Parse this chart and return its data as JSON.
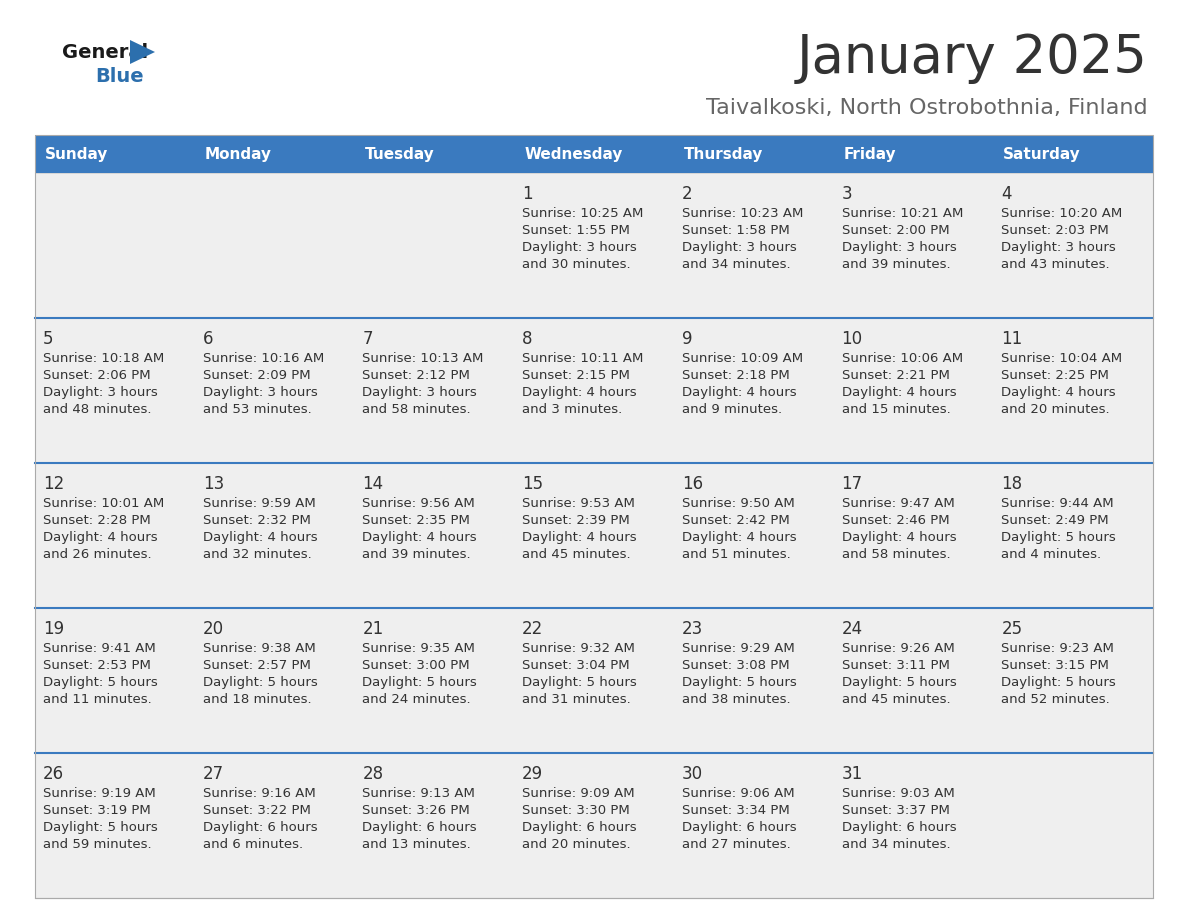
{
  "title": "January 2025",
  "subtitle": "Taivalkoski, North Ostrobothnia, Finland",
  "days_of_week": [
    "Sunday",
    "Monday",
    "Tuesday",
    "Wednesday",
    "Thursday",
    "Friday",
    "Saturday"
  ],
  "header_bg": "#3a7abf",
  "header_text": "#ffffff",
  "cell_bg_light": "#efefef",
  "separator_color": "#3a7abf",
  "text_color": "#333333",
  "title_color": "#333333",
  "subtitle_color": "#666666",
  "calendar_data": [
    [
      null,
      null,
      null,
      {
        "day": 1,
        "sunrise": "10:25 AM",
        "sunset": "1:55 PM",
        "daylight_h": "3 hours",
        "daylight_m": "and 30 minutes."
      },
      {
        "day": 2,
        "sunrise": "10:23 AM",
        "sunset": "1:58 PM",
        "daylight_h": "3 hours",
        "daylight_m": "and 34 minutes."
      },
      {
        "day": 3,
        "sunrise": "10:21 AM",
        "sunset": "2:00 PM",
        "daylight_h": "3 hours",
        "daylight_m": "and 39 minutes."
      },
      {
        "day": 4,
        "sunrise": "10:20 AM",
        "sunset": "2:03 PM",
        "daylight_h": "3 hours",
        "daylight_m": "and 43 minutes."
      }
    ],
    [
      {
        "day": 5,
        "sunrise": "10:18 AM",
        "sunset": "2:06 PM",
        "daylight_h": "3 hours",
        "daylight_m": "and 48 minutes."
      },
      {
        "day": 6,
        "sunrise": "10:16 AM",
        "sunset": "2:09 PM",
        "daylight_h": "3 hours",
        "daylight_m": "and 53 minutes."
      },
      {
        "day": 7,
        "sunrise": "10:13 AM",
        "sunset": "2:12 PM",
        "daylight_h": "3 hours",
        "daylight_m": "and 58 minutes."
      },
      {
        "day": 8,
        "sunrise": "10:11 AM",
        "sunset": "2:15 PM",
        "daylight_h": "4 hours",
        "daylight_m": "and 3 minutes."
      },
      {
        "day": 9,
        "sunrise": "10:09 AM",
        "sunset": "2:18 PM",
        "daylight_h": "4 hours",
        "daylight_m": "and 9 minutes."
      },
      {
        "day": 10,
        "sunrise": "10:06 AM",
        "sunset": "2:21 PM",
        "daylight_h": "4 hours",
        "daylight_m": "and 15 minutes."
      },
      {
        "day": 11,
        "sunrise": "10:04 AM",
        "sunset": "2:25 PM",
        "daylight_h": "4 hours",
        "daylight_m": "and 20 minutes."
      }
    ],
    [
      {
        "day": 12,
        "sunrise": "10:01 AM",
        "sunset": "2:28 PM",
        "daylight_h": "4 hours",
        "daylight_m": "and 26 minutes."
      },
      {
        "day": 13,
        "sunrise": "9:59 AM",
        "sunset": "2:32 PM",
        "daylight_h": "4 hours",
        "daylight_m": "and 32 minutes."
      },
      {
        "day": 14,
        "sunrise": "9:56 AM",
        "sunset": "2:35 PM",
        "daylight_h": "4 hours",
        "daylight_m": "and 39 minutes."
      },
      {
        "day": 15,
        "sunrise": "9:53 AM",
        "sunset": "2:39 PM",
        "daylight_h": "4 hours",
        "daylight_m": "and 45 minutes."
      },
      {
        "day": 16,
        "sunrise": "9:50 AM",
        "sunset": "2:42 PM",
        "daylight_h": "4 hours",
        "daylight_m": "and 51 minutes."
      },
      {
        "day": 17,
        "sunrise": "9:47 AM",
        "sunset": "2:46 PM",
        "daylight_h": "4 hours",
        "daylight_m": "and 58 minutes."
      },
      {
        "day": 18,
        "sunrise": "9:44 AM",
        "sunset": "2:49 PM",
        "daylight_h": "5 hours",
        "daylight_m": "and 4 minutes."
      }
    ],
    [
      {
        "day": 19,
        "sunrise": "9:41 AM",
        "sunset": "2:53 PM",
        "daylight_h": "5 hours",
        "daylight_m": "and 11 minutes."
      },
      {
        "day": 20,
        "sunrise": "9:38 AM",
        "sunset": "2:57 PM",
        "daylight_h": "5 hours",
        "daylight_m": "and 18 minutes."
      },
      {
        "day": 21,
        "sunrise": "9:35 AM",
        "sunset": "3:00 PM",
        "daylight_h": "5 hours",
        "daylight_m": "and 24 minutes."
      },
      {
        "day": 22,
        "sunrise": "9:32 AM",
        "sunset": "3:04 PM",
        "daylight_h": "5 hours",
        "daylight_m": "and 31 minutes."
      },
      {
        "day": 23,
        "sunrise": "9:29 AM",
        "sunset": "3:08 PM",
        "daylight_h": "5 hours",
        "daylight_m": "and 38 minutes."
      },
      {
        "day": 24,
        "sunrise": "9:26 AM",
        "sunset": "3:11 PM",
        "daylight_h": "5 hours",
        "daylight_m": "and 45 minutes."
      },
      {
        "day": 25,
        "sunrise": "9:23 AM",
        "sunset": "3:15 PM",
        "daylight_h": "5 hours",
        "daylight_m": "and 52 minutes."
      }
    ],
    [
      {
        "day": 26,
        "sunrise": "9:19 AM",
        "sunset": "3:19 PM",
        "daylight_h": "5 hours",
        "daylight_m": "and 59 minutes."
      },
      {
        "day": 27,
        "sunrise": "9:16 AM",
        "sunset": "3:22 PM",
        "daylight_h": "6 hours",
        "daylight_m": "and 6 minutes."
      },
      {
        "day": 28,
        "sunrise": "9:13 AM",
        "sunset": "3:26 PM",
        "daylight_h": "6 hours",
        "daylight_m": "and 13 minutes."
      },
      {
        "day": 29,
        "sunrise": "9:09 AM",
        "sunset": "3:30 PM",
        "daylight_h": "6 hours",
        "daylight_m": "and 20 minutes."
      },
      {
        "day": 30,
        "sunrise": "9:06 AM",
        "sunset": "3:34 PM",
        "daylight_h": "6 hours",
        "daylight_m": "and 27 minutes."
      },
      {
        "day": 31,
        "sunrise": "9:03 AM",
        "sunset": "3:37 PM",
        "daylight_h": "6 hours",
        "daylight_m": "and 34 minutes."
      },
      null
    ]
  ]
}
